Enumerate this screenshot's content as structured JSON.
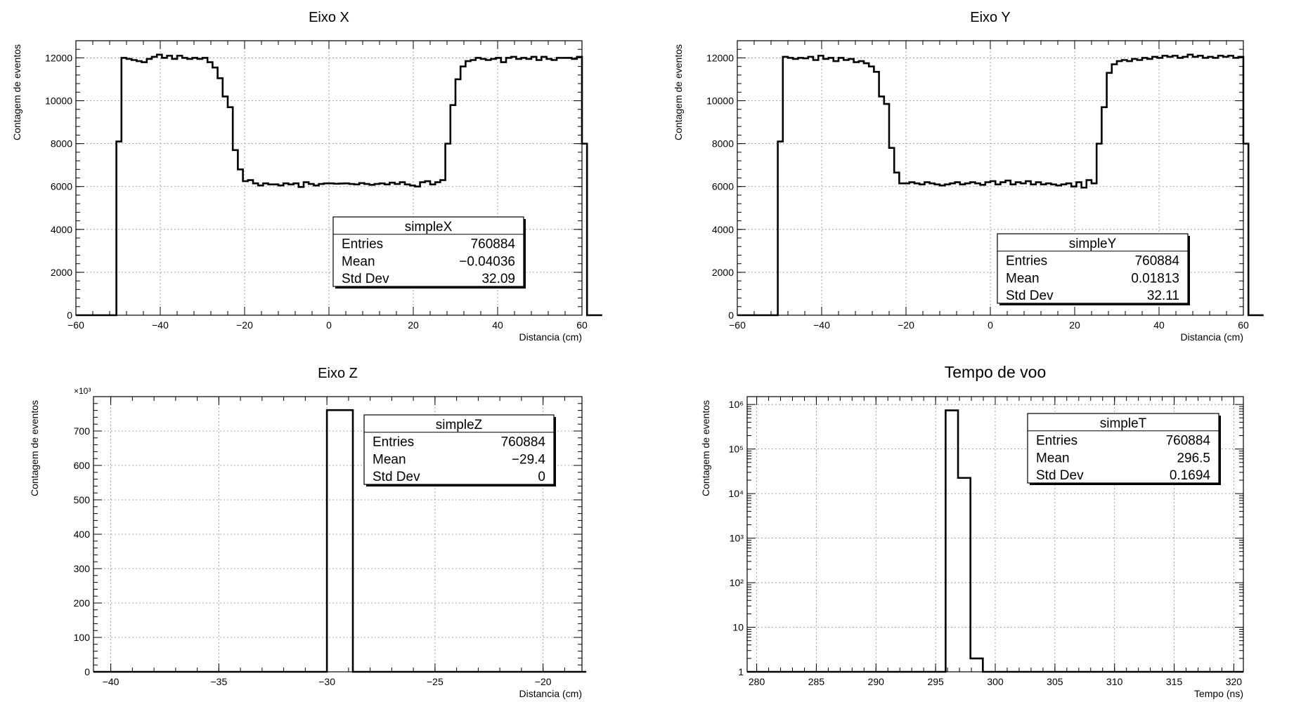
{
  "chart_data": [
    {
      "type": "bar",
      "title": "Eixo X",
      "xlabel": "Distancia (cm)",
      "ylabel": "Contagem de eventos",
      "xlim": [
        -60,
        60
      ],
      "ylim": [
        0,
        12800
      ],
      "yscale": "linear",
      "x_ticks": [
        -60,
        -40,
        -20,
        0,
        20,
        40,
        60
      ],
      "x_tick_labels": [
        "−60",
        "−40",
        "−20",
        "0",
        "20",
        "40",
        "60"
      ],
      "y_ticks": [
        0,
        2000,
        4000,
        6000,
        8000,
        10000,
        12000
      ],
      "y_tick_labels": [
        "0",
        "2000",
        "4000",
        "6000",
        "8000",
        "10000",
        "12000"
      ],
      "grid": true,
      "bins": {
        "edges_start": -60,
        "bin_width": 1.2,
        "counts": [
          0,
          0,
          0,
          0,
          0,
          0,
          0,
          0,
          8100,
          12000,
          11950,
          11900,
          11850,
          11800,
          11950,
          12050,
          12150,
          12000,
          12100,
          11950,
          12100,
          12000,
          11950,
          12000,
          11950,
          12000,
          11800,
          11550,
          11050,
          10200,
          9700,
          7700,
          6800,
          6250,
          6300,
          6150,
          6050,
          6150,
          6100,
          6100,
          6050,
          6150,
          6100,
          6150,
          5980,
          6200,
          6120,
          6050,
          6120,
          6150,
          6150,
          6130,
          6140,
          6150,
          6120,
          6100,
          6160,
          6120,
          6080,
          6120,
          6150,
          6100,
          6180,
          6120,
          6200,
          6100,
          6050,
          6000,
          6200,
          6250,
          6100,
          6200,
          6300,
          8000,
          9800,
          11000,
          11600,
          11850,
          11900,
          12000,
          11950,
          11900,
          11950,
          12000,
          11800,
          12000,
          12050,
          11950,
          12000,
          11950,
          12050,
          11900,
          12050,
          11950,
          11900,
          12000,
          12000,
          12000,
          11950,
          12050,
          8000,
          0,
          0,
          0
        ]
      },
      "stats": {
        "title": "simpleX",
        "rows": [
          {
            "label": "Entries",
            "value": "760884"
          },
          {
            "label": "Mean",
            "value": "−0.04036"
          },
          {
            "label": "Std Dev",
            "value": "32.09"
          }
        ]
      }
    },
    {
      "type": "bar",
      "title": "Eixo Y",
      "xlabel": "Distancia (cm)",
      "ylabel": "Contagem de eventos",
      "xlim": [
        -60,
        60
      ],
      "ylim": [
        0,
        12800
      ],
      "yscale": "linear",
      "x_ticks": [
        -60,
        -40,
        -20,
        0,
        20,
        40,
        60
      ],
      "x_tick_labels": [
        "−60",
        "−40",
        "−20",
        "0",
        "20",
        "40",
        "60"
      ],
      "y_ticks": [
        0,
        2000,
        4000,
        6000,
        8000,
        10000,
        12000
      ],
      "y_tick_labels": [
        "0",
        "2000",
        "4000",
        "6000",
        "8000",
        "10000",
        "12000"
      ],
      "grid": true,
      "bins": {
        "edges_start": -60,
        "bin_width": 1.2,
        "counts": [
          0,
          0,
          0,
          0,
          0,
          0,
          0,
          0,
          8100,
          12050,
          12000,
          11950,
          12000,
          11980,
          12050,
          11900,
          12100,
          11950,
          12000,
          11850,
          12000,
          11900,
          11950,
          11800,
          11850,
          11750,
          11600,
          11350,
          10200,
          9850,
          7800,
          6650,
          6150,
          6150,
          6200,
          6150,
          6100,
          6200,
          6150,
          6100,
          6050,
          6100,
          6150,
          6200,
          6100,
          6150,
          6200,
          6150,
          6080,
          6200,
          6250,
          6100,
          6200,
          6280,
          6100,
          6200,
          6150,
          6250,
          6100,
          6200,
          6100,
          6150,
          6100,
          6050,
          6100,
          6150,
          6000,
          6200,
          5950,
          6300,
          6150,
          8000,
          9700,
          11300,
          11700,
          11850,
          11900,
          11850,
          11950,
          11900,
          12000,
          11950,
          12050,
          12000,
          12100,
          12050,
          12100,
          12000,
          12050,
          12150,
          12050,
          12100,
          12000,
          12050,
          12000,
          12100,
          12050,
          12100,
          12000,
          12050,
          8000,
          0,
          0,
          0
        ]
      },
      "stats": {
        "title": "simpleY",
        "rows": [
          {
            "label": "Entries",
            "value": "760884"
          },
          {
            "label": "Mean",
            "value": "0.01813"
          },
          {
            "label": "Std Dev",
            "value": "32.11"
          }
        ]
      }
    },
    {
      "type": "bar",
      "title": "Eixo Z",
      "xlabel": "Distancia (cm)",
      "ylabel": "Contagem de eventos",
      "xlim": [
        -40.8,
        -18.2
      ],
      "ylim": [
        0,
        800000
      ],
      "yscale": "linear",
      "y_multiplier": "×10³",
      "x_ticks": [
        -40,
        -35,
        -30,
        -25,
        -20
      ],
      "x_tick_labels": [
        "−40",
        "−35",
        "−30",
        "−25",
        "−20"
      ],
      "y_ticks": [
        0,
        100000,
        200000,
        300000,
        400000,
        500000,
        600000,
        700000
      ],
      "y_tick_labels": [
        "0",
        "100",
        "200",
        "300",
        "400",
        "500",
        "600",
        "700"
      ],
      "grid": true,
      "bins": {
        "edges_start": -40.8,
        "bin_width": 1.2,
        "counts": [
          0,
          0,
          0,
          0,
          0,
          0,
          0,
          0,
          0,
          760884,
          0,
          0,
          0,
          0,
          0,
          0,
          0,
          0,
          0
        ]
      },
      "stats": {
        "title": "simpleZ",
        "rows": [
          {
            "label": "Entries",
            "value": "760884"
          },
          {
            "label": "Mean",
            "value": "−29.4"
          },
          {
            "label": "Std Dev",
            "value": "0"
          }
        ]
      }
    },
    {
      "type": "bar",
      "title": "Tempo de voo",
      "xlabel": "Tempo (ns)",
      "ylabel": "Contagem de eventos",
      "xlim": [
        279.2,
        320.8
      ],
      "ylim": [
        1,
        1500000
      ],
      "yscale": "log",
      "x_ticks": [
        280,
        285,
        290,
        295,
        300,
        305,
        310,
        315,
        320
      ],
      "x_tick_labels": [
        "280",
        "285",
        "290",
        "295",
        "300",
        "305",
        "310",
        "315",
        "320"
      ],
      "y_ticks": [
        1,
        10,
        100,
        1000,
        10000,
        100000,
        1000000
      ],
      "y_tick_labels": [
        "1",
        "10",
        "10²",
        "10³",
        "10⁴",
        "10⁵",
        "10⁶"
      ],
      "grid": true,
      "bins": {
        "edges_start": 279.2,
        "bin_width": 1.04,
        "counts": [
          0,
          0,
          0,
          0,
          0,
          0,
          0,
          0,
          0,
          0,
          0,
          0,
          0,
          0,
          0,
          0,
          738000,
          22500,
          2,
          0,
          0,
          0,
          0,
          0,
          0,
          0,
          0,
          0,
          0,
          0,
          0,
          0,
          0,
          0,
          0,
          0,
          0,
          0,
          0,
          0
        ]
      },
      "stats": {
        "title": "simpleT",
        "rows": [
          {
            "label": "Entries",
            "value": "760884"
          },
          {
            "label": "Mean",
            "value": "296.5"
          },
          {
            "label": "Std Dev",
            "value": "0.1694"
          }
        ]
      }
    }
  ]
}
